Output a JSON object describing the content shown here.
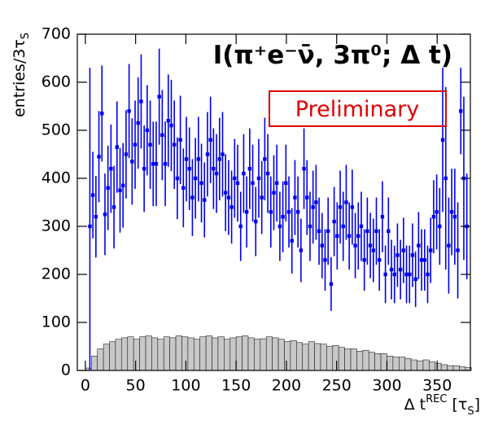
{
  "chart_data": {
    "type": "scatter",
    "title": "I(π⁺e⁻ν̄, 3π⁰; Δ t)",
    "annotation": "Preliminary",
    "ylabel": "entries/3τ",
    "ylabel_sub": "S",
    "xlabel_parts": [
      "Δ t",
      "REC",
      " [τ",
      "S",
      "]"
    ],
    "color": "#0000ee",
    "xlim": [
      -8,
      383
    ],
    "ylim": [
      0,
      700
    ],
    "xticks": [
      0,
      50,
      100,
      150,
      200,
      250,
      300,
      350
    ],
    "yticks": [
      0,
      100,
      200,
      300,
      400,
      500,
      600,
      700
    ],
    "x": [
      4.5,
      7.5,
      10.5,
      13.5,
      16.5,
      19.5,
      22.5,
      25.5,
      28.5,
      31.5,
      34.5,
      37.5,
      40.5,
      43.5,
      46.5,
      49.5,
      52.5,
      55.5,
      58.5,
      61.5,
      64.5,
      67.5,
      70.5,
      73.5,
      76.5,
      79.5,
      82.5,
      85.5,
      88.5,
      91.5,
      94.5,
      97.5,
      100.5,
      103.5,
      106.5,
      109.5,
      112.5,
      115.5,
      118.5,
      121.5,
      124.5,
      127.5,
      130.5,
      133.5,
      136.5,
      139.5,
      142.5,
      145.5,
      148.5,
      151.5,
      154.5,
      157.5,
      160.5,
      163.5,
      166.5,
      169.5,
      172.5,
      175.5,
      178.5,
      181.5,
      184.5,
      187.5,
      190.5,
      193.5,
      196.5,
      199.5,
      202.5,
      205.5,
      208.5,
      211.5,
      214.5,
      217.5,
      220.5,
      223.5,
      226.5,
      229.5,
      232.5,
      235.5,
      238.5,
      241.5,
      244.5,
      247.5,
      250.5,
      253.5,
      256.5,
      259.5,
      262.5,
      265.5,
      268.5,
      271.5,
      274.5,
      277.5,
      280.5,
      283.5,
      286.5,
      289.5,
      292.5,
      295.5,
      298.5,
      301.5,
      304.5,
      307.5,
      310.5,
      313.5,
      316.5,
      319.5,
      322.5,
      325.5,
      328.5,
      331.5,
      334.5,
      337.5,
      340.5,
      343.5,
      346.5,
      349.5,
      352.5,
      355.5,
      358.5,
      361.5,
      364.5,
      367.5,
      370.5,
      373.5,
      376.5,
      379.5
    ],
    "values": [
      300,
      365,
      320,
      445,
      535,
      325,
      380,
      420,
      340,
      465,
      375,
      385,
      450,
      540,
      435,
      470,
      515,
      560,
      420,
      500,
      470,
      430,
      430,
      570,
      490,
      430,
      520,
      510,
      470,
      400,
      480,
      380,
      440,
      420,
      360,
      400,
      440,
      390,
      355,
      450,
      480,
      420,
      410,
      440,
      450,
      370,
      360,
      340,
      400,
      390,
      300,
      410,
      330,
      420,
      390,
      310,
      400,
      360,
      440,
      410,
      330,
      370,
      390,
      300,
      320,
      390,
      330,
      270,
      360,
      330,
      250,
      420,
      360,
      300,
      340,
      350,
      290,
      260,
      230,
      290,
      180,
      310,
      280,
      340,
      300,
      350,
      280,
      340,
      260,
      280,
      300,
      230,
      290,
      260,
      250,
      290,
      230,
      320,
      200,
      290,
      210,
      200,
      240,
      210,
      250,
      200,
      200,
      240,
      190,
      260,
      230,
      230,
      200,
      250,
      320,
      330,
      300,
      480,
      400,
      260,
      330,
      320,
      250,
      540,
      400,
      300
    ],
    "errors": [
      330,
      90,
      85,
      95,
      100,
      85,
      88,
      92,
      86,
      95,
      88,
      88,
      92,
      98,
      90,
      92,
      95,
      98,
      90,
      94,
      92,
      88,
      88,
      100,
      94,
      88,
      96,
      95,
      92,
      85,
      92,
      82,
      88,
      86,
      80,
      84,
      88,
      82,
      78,
      88,
      90,
      84,
      82,
      86,
      88,
      80,
      78,
      76,
      82,
      80,
      72,
      82,
      74,
      84,
      80,
      72,
      82,
      76,
      86,
      82,
      74,
      78,
      80,
      72,
      74,
      80,
      74,
      68,
      78,
      74,
      66,
      84,
      78,
      72,
      76,
      78,
      70,
      68,
      64,
      70,
      56,
      72,
      70,
      76,
      72,
      78,
      70,
      78,
      68,
      70,
      72,
      64,
      70,
      68,
      66,
      70,
      64,
      74,
      60,
      70,
      62,
      60,
      66,
      62,
      68,
      60,
      60,
      66,
      58,
      70,
      64,
      64,
      60,
      68,
      76,
      78,
      80,
      150,
      190,
      100,
      90,
      100,
      100,
      90,
      170,
      110
    ],
    "histogram": {
      "type": "histogram",
      "color": "#c8c8c8",
      "bins": [
        0,
        6,
        12,
        18,
        24,
        30,
        36,
        42,
        48,
        54,
        60,
        66,
        72,
        78,
        84,
        90,
        96,
        102,
        108,
        114,
        120,
        126,
        132,
        138,
        144,
        150,
        156,
        162,
        168,
        174,
        180,
        186,
        192,
        198,
        204,
        210,
        216,
        222,
        228,
        234,
        240,
        246,
        252,
        258,
        264,
        270,
        276,
        282,
        288,
        294,
        300,
        306,
        312,
        318,
        324,
        330,
        336,
        342,
        348,
        354,
        360,
        366,
        372,
        378,
        384
      ],
      "counts": [
        5,
        30,
        45,
        55,
        60,
        65,
        68,
        70,
        65,
        70,
        72,
        68,
        65,
        70,
        68,
        72,
        70,
        68,
        65,
        70,
        72,
        68,
        70,
        65,
        68,
        70,
        72,
        68,
        65,
        66,
        70,
        68,
        65,
        60,
        62,
        58,
        55,
        60,
        56,
        55,
        50,
        52,
        48,
        45,
        45,
        40,
        42,
        38,
        35,
        35,
        30,
        28,
        28,
        25,
        22,
        20,
        22,
        18,
        15,
        12,
        10,
        10,
        8,
        6
      ]
    }
  }
}
